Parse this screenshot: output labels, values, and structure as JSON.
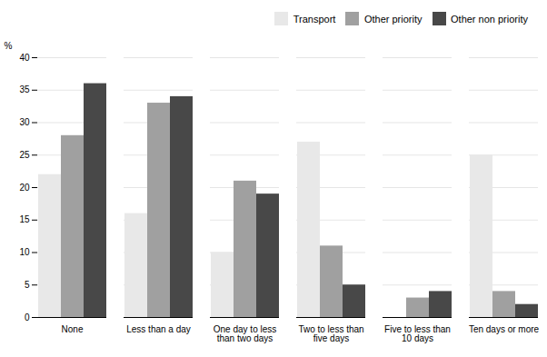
{
  "chart_data": {
    "type": "bar",
    "categories": [
      "None",
      "Less than a day",
      "One day to less\nthan two days",
      "Two to less than\nfive days",
      "Five to less than\n10 days",
      "Ten days or more"
    ],
    "series": [
      {
        "name": "Transport",
        "color": "#e8e8e8",
        "values": [
          22,
          16,
          10,
          27,
          0,
          25
        ]
      },
      {
        "name": "Other priority",
        "color": "#a0a0a0",
        "values": [
          28,
          33,
          21,
          11,
          3,
          4
        ]
      },
      {
        "name": "Other non priority",
        "color": "#484848",
        "values": [
          36,
          34,
          19,
          5,
          4,
          2
        ]
      }
    ],
    "ylabel": "%",
    "ylim": [
      0,
      40
    ],
    "yticks": [
      0,
      5,
      10,
      15,
      20,
      25,
      30,
      35,
      40
    ],
    "grid": true,
    "legend": "upper right"
  }
}
